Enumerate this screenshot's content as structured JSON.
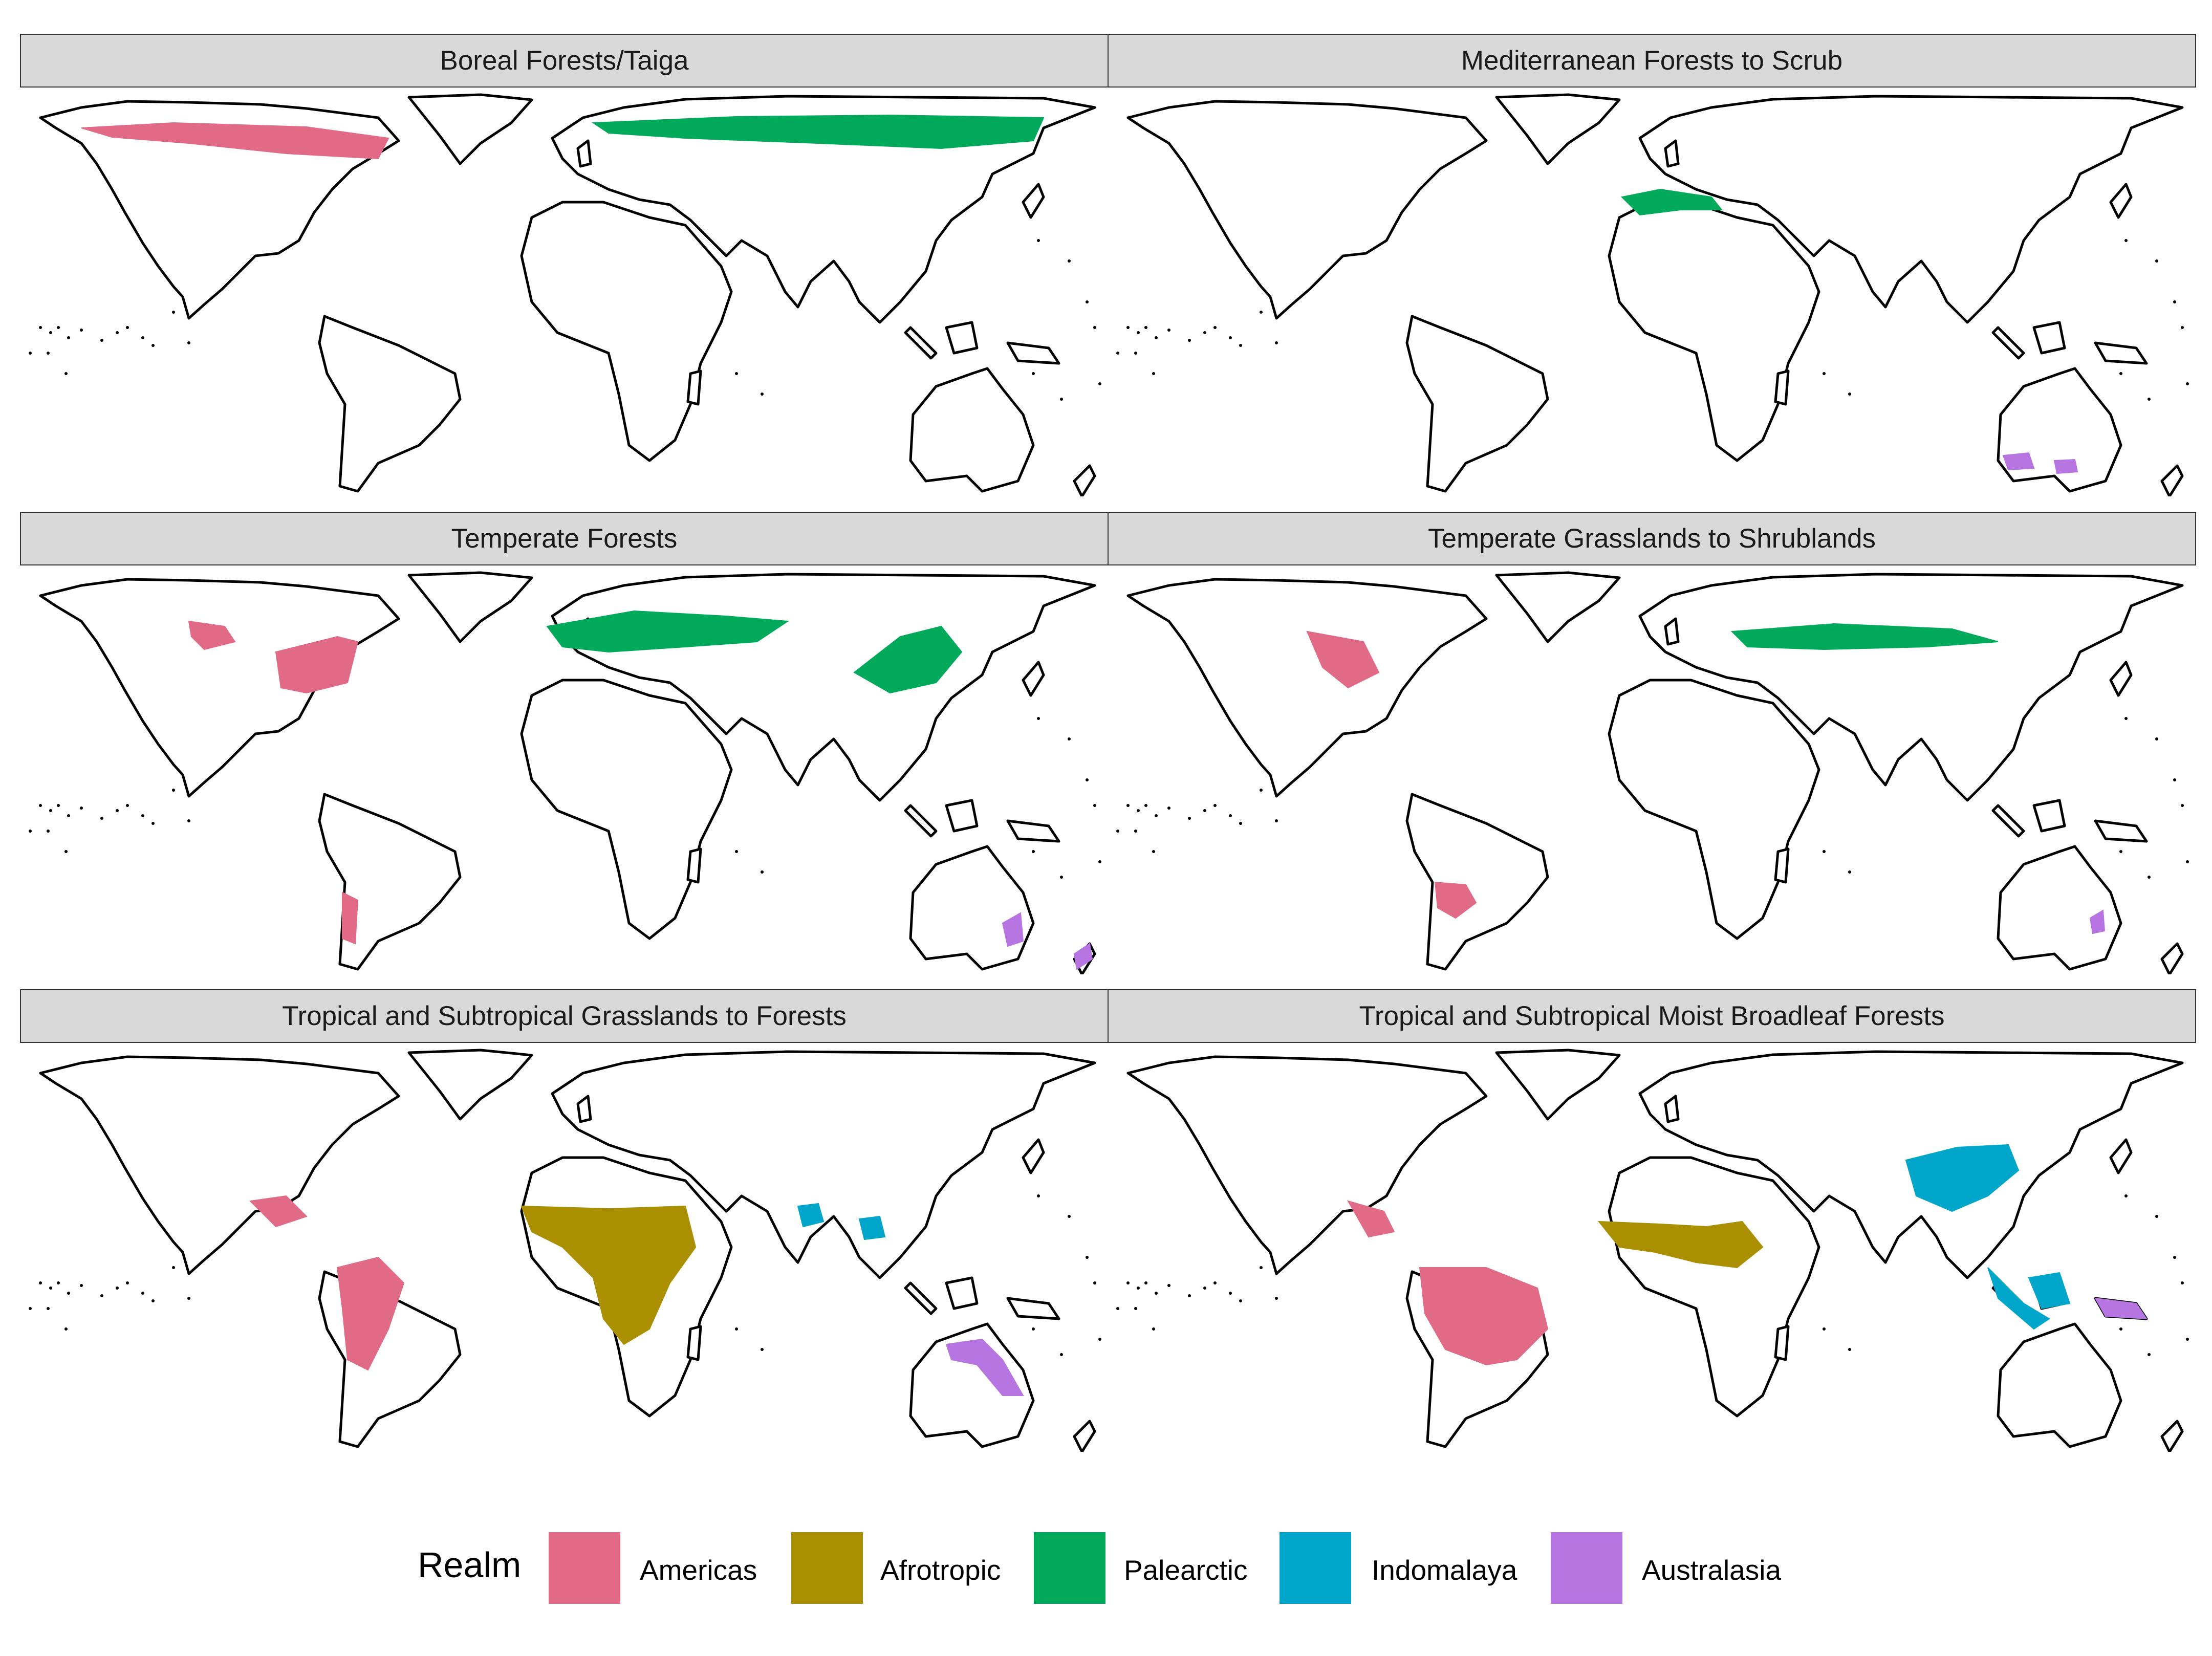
{
  "panels": [
    {
      "title": "Boreal Forests/Taiga"
    },
    {
      "title": "Mediterranean Forests to Scrub"
    },
    {
      "title": "Temperate Forests"
    },
    {
      "title": "Temperate Grasslands to Shrublands"
    },
    {
      "title": "Tropical and Subtropical Grasslands to Forests"
    },
    {
      "title": "Tropical and Subtropical Moist Broadleaf Forests"
    }
  ],
  "legend": {
    "title": "Realm",
    "items": [
      {
        "label": "Americas",
        "color": "#E16A86"
      },
      {
        "label": "Afrotropic",
        "color": "#AA9000"
      },
      {
        "label": "Palearctic",
        "color": "#00AA5A"
      },
      {
        "label": "Indomalaya",
        "color": "#00A6CA"
      },
      {
        "label": "Australasia",
        "color": "#B675E0"
      }
    ]
  }
}
